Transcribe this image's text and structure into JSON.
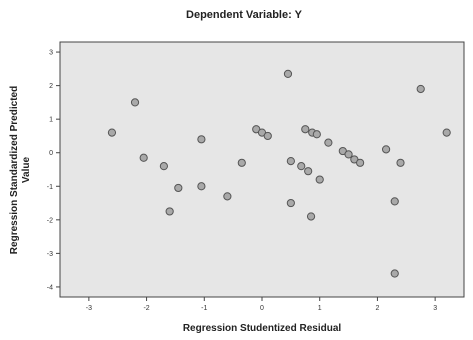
{
  "colors": {
    "plot_background": "#e6e6e6",
    "frame": "#444444",
    "point_fill": "#a9a9a9",
    "point_stroke": "#555555"
  },
  "chart_data": {
    "type": "scatter",
    "title": "Dependent Variable: Y",
    "xlabel": "Regression Studentized Residual",
    "ylabel_lines": [
      "Regression Standardized Predicted",
      "Value"
    ],
    "xlim": [
      -3.5,
      3.5
    ],
    "ylim": [
      -4.3,
      3.3
    ],
    "x_ticks": [
      -3,
      -2,
      -1,
      0,
      1,
      2,
      3
    ],
    "x_tick_labels": [
      "-3",
      "-2",
      "-1",
      "0",
      "1",
      "2",
      "3"
    ],
    "y_ticks": [
      3,
      2,
      1,
      0,
      -1,
      -2,
      -3,
      -4
    ],
    "y_tick_labels": [
      "3",
      "2",
      "1",
      "0",
      "-1",
      "-2",
      "-3",
      "-4"
    ],
    "grid": false,
    "points": [
      {
        "x": -2.6,
        "y": 0.6
      },
      {
        "x": -2.2,
        "y": 1.5
      },
      {
        "x": -2.05,
        "y": -0.15
      },
      {
        "x": -1.7,
        "y": -0.4
      },
      {
        "x": -1.45,
        "y": -1.05
      },
      {
        "x": -1.6,
        "y": -1.75
      },
      {
        "x": -1.05,
        "y": 0.4
      },
      {
        "x": -1.05,
        "y": -1.0
      },
      {
        "x": -0.6,
        "y": -1.3
      },
      {
        "x": -0.35,
        "y": -0.3
      },
      {
        "x": -0.1,
        "y": 0.7
      },
      {
        "x": 0.0,
        "y": 0.6
      },
      {
        "x": 0.1,
        "y": 0.5
      },
      {
        "x": 0.45,
        "y": 2.35
      },
      {
        "x": 0.5,
        "y": -0.25
      },
      {
        "x": 0.5,
        "y": -1.5
      },
      {
        "x": 0.68,
        "y": -0.4
      },
      {
        "x": 0.8,
        "y": -0.55
      },
      {
        "x": 0.75,
        "y": 0.7
      },
      {
        "x": 0.87,
        "y": 0.6
      },
      {
        "x": 0.95,
        "y": 0.55
      },
      {
        "x": 1.0,
        "y": -0.8
      },
      {
        "x": 0.85,
        "y": -1.9
      },
      {
        "x": 1.15,
        "y": 0.3
      },
      {
        "x": 1.4,
        "y": 0.05
      },
      {
        "x": 1.5,
        "y": -0.05
      },
      {
        "x": 1.6,
        "y": -0.2
      },
      {
        "x": 1.7,
        "y": -0.3
      },
      {
        "x": 2.15,
        "y": 0.1
      },
      {
        "x": 2.3,
        "y": -1.45
      },
      {
        "x": 2.4,
        "y": -0.3
      },
      {
        "x": 2.3,
        "y": -3.6
      },
      {
        "x": 2.75,
        "y": 1.9
      },
      {
        "x": 3.2,
        "y": 0.6
      }
    ]
  }
}
